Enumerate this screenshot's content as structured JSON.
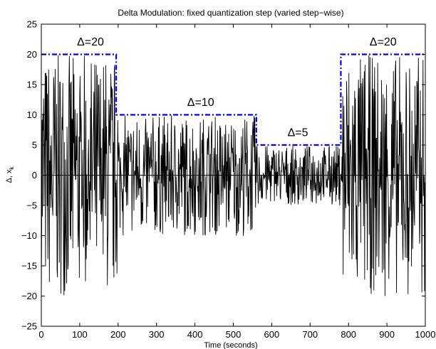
{
  "chart_data": {
    "type": "line",
    "title": "Delta Modulation: fixed quantization step (varied step−wise)",
    "xlabel": "Time (seconds)",
    "ylabel": "Δ, x",
    "ylabel_subscript": "k",
    "xlim": [
      0,
      1000
    ],
    "ylim": [
      -25,
      25
    ],
    "xticks": [
      0,
      100,
      200,
      300,
      400,
      500,
      600,
      700,
      800,
      900,
      1000
    ],
    "yticks": [
      25,
      20,
      15,
      10,
      5,
      0,
      -5,
      -10,
      -15,
      -20,
      -25
    ],
    "grid": false,
    "series": [
      {
        "style": "solid",
        "color": "#000000",
        "description": "noisy signal x_k, amplitude envelope follows the step size",
        "segments": [
          {
            "x_start": 0,
            "x_end": 200,
            "amplitude": 20
          },
          {
            "x_start": 200,
            "x_end": 560,
            "amplitude": 10
          },
          {
            "x_start": 560,
            "x_end": 785,
            "amplitude": 5
          },
          {
            "x_start": 785,
            "x_end": 1000,
            "amplitude": 20
          }
        ]
      },
      {
        "style": "dashed",
        "color": "#0000ff",
        "x": [
          0,
          195,
          195,
          560,
          560,
          780,
          780,
          1000
        ],
        "y": [
          20,
          20,
          10,
          10,
          5,
          5,
          20,
          20
        ]
      }
    ],
    "annotations": [
      {
        "text": "Δ=20",
        "x": 128,
        "y": 21.5
      },
      {
        "text": "Δ=10",
        "x": 415,
        "y": 11.5
      },
      {
        "text": "Δ=5",
        "x": 668,
        "y": 6.5
      },
      {
        "text": "Δ=20",
        "x": 890,
        "y": 21.5
      }
    ]
  }
}
